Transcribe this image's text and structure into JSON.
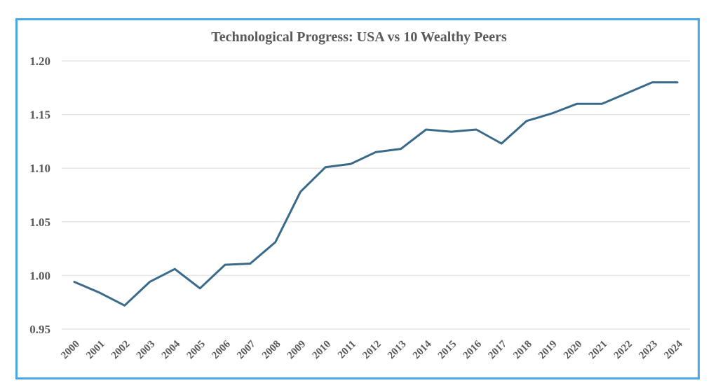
{
  "chart_data": {
    "type": "line",
    "title": "Technological Progress: USA vs 10 Wealthy Peers",
    "xlabel": "",
    "ylabel": "",
    "ylim": [
      0.95,
      1.2
    ],
    "yticks": [
      "0.95",
      "1.00",
      "1.05",
      "1.10",
      "1.15",
      "1.20"
    ],
    "ytick_values": [
      0.95,
      1.0,
      1.05,
      1.1,
      1.15,
      1.2
    ],
    "grid": true,
    "legend": "none",
    "categories": [
      "2000",
      "2001",
      "2002",
      "2003",
      "2004",
      "2005",
      "2006",
      "2007",
      "2008",
      "2009",
      "2010",
      "2011",
      "2012",
      "2013",
      "2014",
      "2015",
      "2016",
      "2017",
      "2018",
      "2019",
      "2020",
      "2021",
      "2022",
      "2023",
      "2024"
    ],
    "series": [
      {
        "name": "USA vs 10 Wealthy Peers",
        "color": "#3a6a8a",
        "values": [
          0.994,
          0.984,
          0.972,
          0.994,
          1.006,
          0.988,
          1.01,
          1.011,
          1.031,
          1.078,
          1.101,
          1.104,
          1.115,
          1.118,
          1.136,
          1.134,
          1.136,
          1.123,
          1.144,
          1.151,
          1.16,
          1.16,
          1.17,
          1.18,
          1.18
        ]
      }
    ]
  },
  "colors": {
    "border": "#4aa8e8",
    "line": "#3a6a8a",
    "text": "#595959",
    "grid": "#e6e6e6"
  }
}
